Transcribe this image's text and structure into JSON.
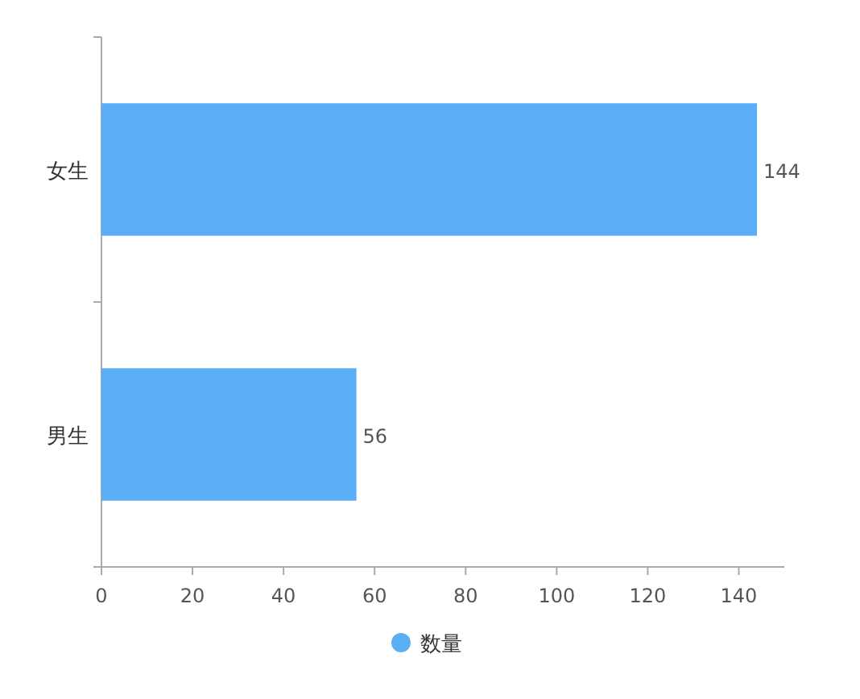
{
  "chart_data": {
    "type": "bar",
    "orientation": "horizontal",
    "categories": [
      "女生",
      "男生"
    ],
    "series": [
      {
        "name": "数量",
        "color": "#5aaef5",
        "values": [
          144,
          56
        ]
      }
    ],
    "xlim": [
      0,
      150
    ],
    "xticks": [
      0,
      20,
      40,
      60,
      80,
      100,
      120,
      140
    ],
    "data_labels": true,
    "legend": "bottom"
  }
}
